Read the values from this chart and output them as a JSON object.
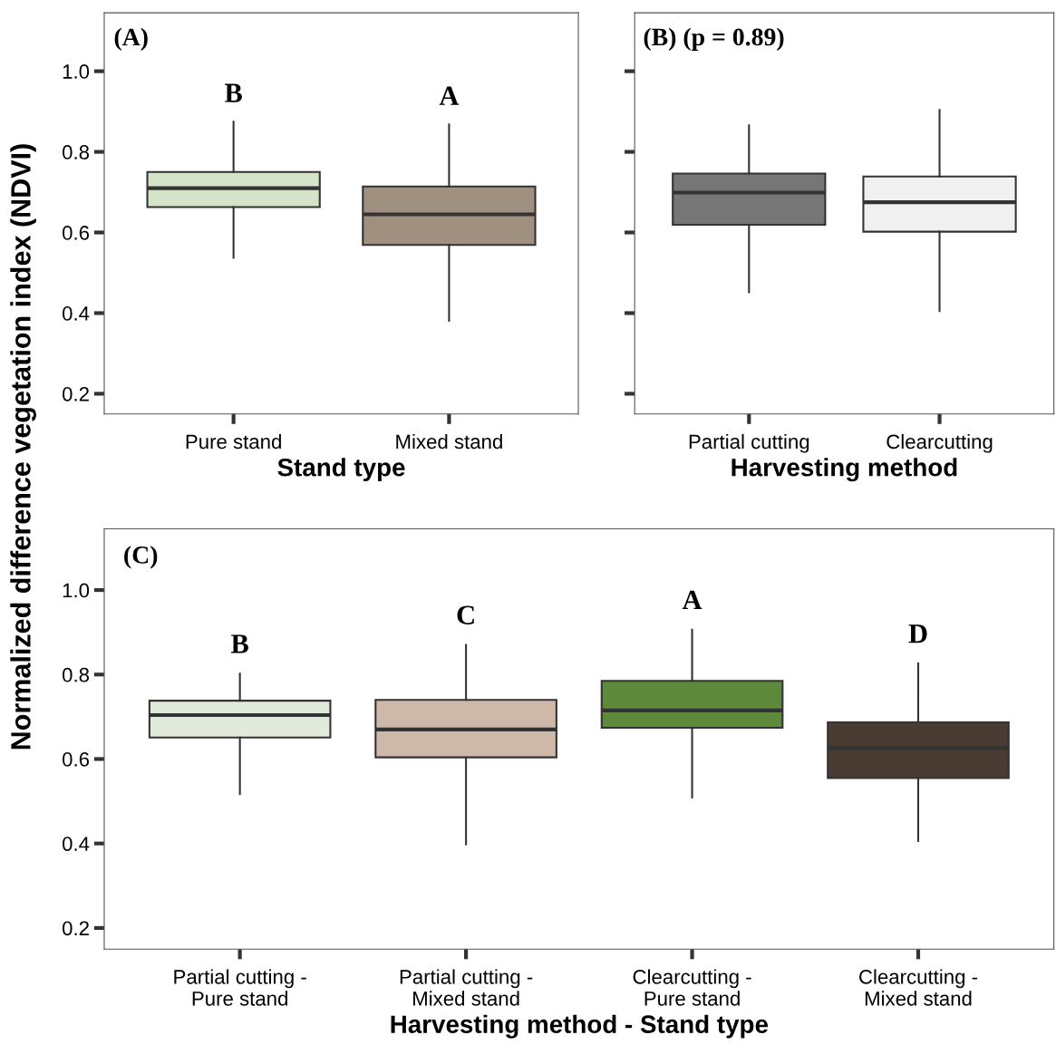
{
  "chart_data": [
    {
      "type": "box",
      "title": "(A)",
      "xlabel": "Stand type",
      "ylabel": "Normalized difference vegetation index (NDVI)",
      "categories": [
        "Pure stand",
        "Mixed stand"
      ],
      "colors": [
        "#d5e3c8",
        "#a09080"
      ],
      "ylim": [
        0.15,
        1.145
      ],
      "yticks": [
        0.2,
        0.4,
        0.6,
        0.8,
        {
          "value": 1,
          "label": "1.0"
        }
      ],
      "grid": false,
      "legend": false,
      "boxes": [
        {
          "low": 0.537,
          "q1": 0.663,
          "median": 0.71,
          "q3": 0.75,
          "high": 0.875
        },
        {
          "low": 0.381,
          "q1": 0.569,
          "median": 0.645,
          "q3": 0.714,
          "high": 0.868
        }
      ],
      "annotations": [
        "B",
        "A"
      ]
    },
    {
      "type": "box",
      "title": "(B) (p = 0.89)",
      "xlabel": "Harvesting method",
      "categories": [
        "Partial cutting",
        "Clearcutting"
      ],
      "colors": [
        "#767676",
        "#f0f0f0"
      ],
      "ylim": [
        0.15,
        1.145
      ],
      "yticks": [
        0.2,
        0.4,
        0.6,
        0.8,
        1.0
      ],
      "tick_labels": "x",
      "grid": false,
      "legend": false,
      "boxes": [
        {
          "low": 0.452,
          "q1": 0.619,
          "median": 0.699,
          "q3": 0.746,
          "high": 0.866
        },
        {
          "low": 0.405,
          "q1": 0.602,
          "median": 0.675,
          "q3": 0.739,
          "high": 0.904
        }
      ]
    },
    {
      "type": "box",
      "title": "(C)",
      "xlabel": "Harvesting method - Stand type",
      "categories": [
        "Partial cutting -\nPure stand",
        "Partial cutting -\nMixed stand",
        "Clearcutting -\nPure stand",
        "Clearcutting -\nMixed stand"
      ],
      "colors": [
        "#e2eadb",
        "#cdb8a9",
        "#5c8a3a",
        "#4a3c33"
      ],
      "ylim": [
        0.15,
        1.145
      ],
      "yticks": [
        0.2,
        0.4,
        0.6,
        0.8,
        {
          "value": 1,
          "label": "1.0"
        }
      ],
      "grid": false,
      "legend": false,
      "boxes": [
        {
          "low": 0.517,
          "q1": 0.651,
          "median": 0.704,
          "q3": 0.738,
          "high": 0.802
        },
        {
          "low": 0.398,
          "q1": 0.604,
          "median": 0.67,
          "q3": 0.74,
          "high": 0.87
        },
        {
          "low": 0.509,
          "q1": 0.674,
          "median": 0.715,
          "q3": 0.785,
          "high": 0.906
        },
        {
          "low": 0.406,
          "q1": 0.555,
          "median": 0.626,
          "q3": 0.687,
          "high": 0.826
        }
      ],
      "annotations": [
        "B",
        "C",
        "A",
        "D"
      ]
    }
  ]
}
